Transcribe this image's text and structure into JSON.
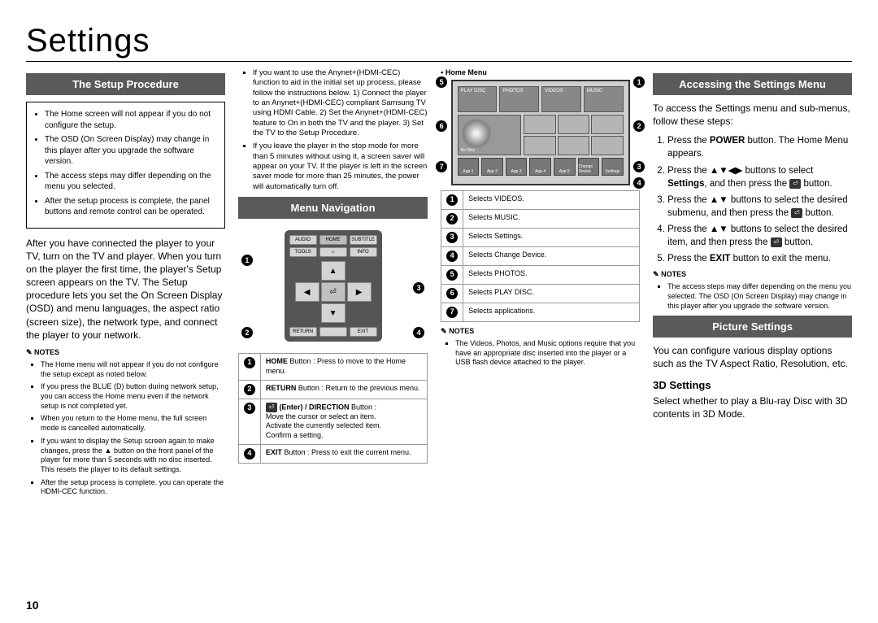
{
  "pageTitle": "Settings",
  "pageNumber": "10",
  "col1": {
    "title": "The Setup Procedure",
    "boxBullets": [
      "The Home screen will not appear if you do not configure the setup.",
      "The OSD (On Screen Display) may change in this player after you upgrade the software version.",
      "The access steps may differ depending on the menu you selected.",
      "After the setup process is complete, the panel buttons and remote control can be operated."
    ],
    "body": "After you have connected the player to your TV, turn on the TV and player. When you turn on the player the first time, the player's Setup screen appears on the TV. The Setup procedure lets you set the On Screen Display (OSD) and menu languages, the aspect ratio (screen size), the network type, and connect the player to your network.",
    "notesTitle": "NOTES",
    "notes": [
      "The Home menu will not appear if you do not configure the setup except as noted below.",
      "If you press the BLUE (D) button during network setup, you can access the Home menu even if the network setup is not completed yet.",
      "When you return to the Home menu, the full screen mode is cancelled automatically.",
      "If you want to display the Setup screen again to make changes, press the ▲ button on the front panel of the player for more than 5 seconds with no disc inserted. This resets the player to its default settings.",
      "After the setup process is complete. you can operate the HDMI-CEC function."
    ]
  },
  "col2": {
    "topBullets": [
      "If you want to use the Anynet+(HDMI-CEC) function to aid in the initial set up process, please follow the instructions below. 1) Connect the player to an Anynet+(HDMI-CEC) compliant Samsung TV using HDMI Cable. 2) Set the Anynet+(HDMI-CEC) feature to On in both the TV and the player. 3) Set the TV to the Setup Procedure.",
      "If you leave the player in the stop mode for more than 5 minutes without using it, a screen saver will appear on your TV. If the player is left in the screen saver mode for more than 25 minutes, the power will automatically turn off."
    ],
    "title": "Menu Navigation",
    "remote": {
      "top": [
        "AUDIO",
        "HOME",
        "SUBTITLE"
      ],
      "mid": [
        "TOOLS",
        "INFO"
      ],
      "bot": [
        "RETURN",
        "EXIT"
      ]
    },
    "callouts": {
      "1": "1",
      "2": "2",
      "3": "3",
      "4": "4"
    },
    "legend": [
      {
        "n": "1",
        "html": "<b>HOME</b> Button : Press to move to the Home menu."
      },
      {
        "n": "2",
        "html": "<b>RETURN</b> Button : Return to the previous menu."
      },
      {
        "n": "3",
        "html": "<span class='btn-icon'>⏎</span> <b>(Enter) / DIRECTION</b> Button :<br>Move the cursor or select an item.<br>Activate the currently selected item.<br>Confirm a setting."
      },
      {
        "n": "4",
        "html": "<b>EXIT</b> Button : Press to exit the current menu."
      }
    ]
  },
  "col3": {
    "homeMenu": "Home Menu",
    "tabs": [
      "PLAY DISC",
      "PHOTOS",
      "VIDEOS",
      "MUSIC"
    ],
    "noDisc": "No Disc",
    "apps": [
      "App 1",
      "App 2",
      "App 3",
      "App 4",
      "App 5"
    ],
    "bottomLabels": [
      "Change Device",
      "Settings"
    ],
    "legend": [
      {
        "n": "1",
        "t": "Selects VIDEOS."
      },
      {
        "n": "2",
        "t": "Selects MUSIC."
      },
      {
        "n": "3",
        "t": "Selects Settings."
      },
      {
        "n": "4",
        "t": "Selects Change Device."
      },
      {
        "n": "5",
        "t": "Selects PHOTOS."
      },
      {
        "n": "6",
        "t": "Selects PLAY DISC."
      },
      {
        "n": "7",
        "t": "Selects applications."
      }
    ],
    "notesTitle": "NOTES",
    "notes": [
      "The Videos, Photos, and Music options require that you have an appropriate disc inserted into the player or a USB flash device attached to the player."
    ]
  },
  "col4": {
    "title1": "Accessing the Settings Menu",
    "intro": "To access the Settings menu and sub-menus, follow these steps:",
    "steps": [
      "Press the <b>POWER</b> button. The Home Menu appears.",
      "Press the ▲▼◀▶ buttons to select <b>Settings</b>, and then press the <span class='btn-icon'>⏎</span> button.",
      "Press the ▲▼ buttons to select the desired submenu, and then press the <span class='btn-icon'>⏎</span> button.",
      "Press the ▲▼ buttons to select the desired item, and then press the <span class='btn-icon'>⏎</span> button.",
      "Press the <b>EXIT</b> button to exit the menu."
    ],
    "notesTitle": "NOTES",
    "notes": [
      "The access steps may differ depending on the menu you selected. The OSD (On Screen Display) may change in this player after you upgrade the software version."
    ],
    "title2": "Picture Settings",
    "body2": "You can configure various display options such as the TV Aspect Ratio, Resolution, etc.",
    "sub": "3D Settings",
    "body3": "Select whether to play a Blu-ray Disc with 3D contents in 3D Mode."
  }
}
